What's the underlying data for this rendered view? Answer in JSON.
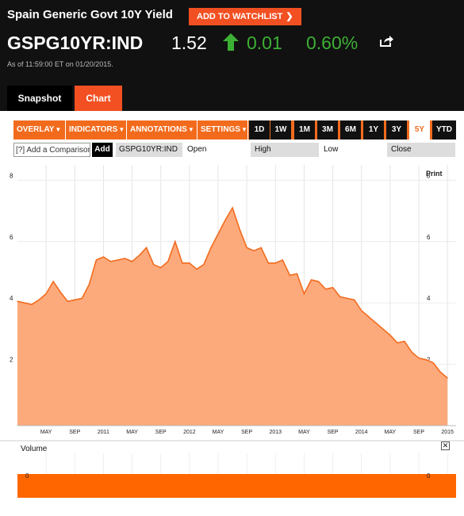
{
  "header": {
    "title": "Spain Generic Govt 10Y Yield",
    "watchlist_label": "ADD TO WATCHLIST",
    "ticker": "GSPG10YR:IND",
    "price": "1.52",
    "change": "0.01",
    "change_pct": "0.60%",
    "as_of": "As of 11:59:00 ET on 01/20/2015.",
    "up_color": "#3cb034",
    "accent": "#f25022"
  },
  "tabs": [
    {
      "label": "Snapshot",
      "active": false
    },
    {
      "label": "Chart",
      "active": true
    }
  ],
  "toolbar": {
    "menus": [
      "OVERLAY",
      "INDICATORS",
      "ANNOTATIONS",
      "SETTINGS"
    ],
    "ranges": [
      "1D",
      "1W",
      "1M",
      "3M",
      "6M",
      "1Y",
      "3Y",
      "5Y",
      "YTD"
    ],
    "active_range": "5Y"
  },
  "compare": {
    "placeholder": "[?] Add a Comparison",
    "add_label": "Add",
    "symbol": "GSPG10YR:IND",
    "fields": [
      "Open",
      "High",
      "Low",
      "Close"
    ]
  },
  "print_label": "Print",
  "volume": {
    "label": "Volume",
    "close_icon": "close-icon",
    "axis_value": "0"
  },
  "chart_data": {
    "type": "area",
    "xlabel": "",
    "ylabel": "",
    "ylim": [
      0,
      8.5
    ],
    "yticks": [
      2,
      4,
      6,
      8
    ],
    "x_tick_labels": [
      "MAY",
      "SEP",
      "2011",
      "MAY",
      "SEP",
      "2012",
      "MAY",
      "SEP",
      "2013",
      "MAY",
      "SEP",
      "2014",
      "MAY",
      "SEP",
      "2015"
    ],
    "grid": true,
    "color": "#f26b1d",
    "fill": "#fcaa7c",
    "x": [
      "2010-01",
      "2010-02",
      "2010-03",
      "2010-04",
      "2010-05",
      "2010-06",
      "2010-07",
      "2010-08",
      "2010-09",
      "2010-10",
      "2010-11",
      "2010-12",
      "2011-01",
      "2011-02",
      "2011-03",
      "2011-04",
      "2011-05",
      "2011-06",
      "2011-07",
      "2011-08",
      "2011-09",
      "2011-10",
      "2011-11",
      "2011-12",
      "2012-01",
      "2012-02",
      "2012-03",
      "2012-04",
      "2012-05",
      "2012-06",
      "2012-07",
      "2012-08",
      "2012-09",
      "2012-10",
      "2012-11",
      "2012-12",
      "2013-01",
      "2013-02",
      "2013-03",
      "2013-04",
      "2013-05",
      "2013-06",
      "2013-07",
      "2013-08",
      "2013-09",
      "2013-10",
      "2013-11",
      "2013-12",
      "2014-01",
      "2014-02",
      "2014-03",
      "2014-04",
      "2014-05",
      "2014-06",
      "2014-07",
      "2014-08",
      "2014-09",
      "2014-10",
      "2014-11",
      "2014-12",
      "2015-01"
    ],
    "values": [
      4.05,
      4.0,
      3.95,
      4.1,
      4.3,
      4.7,
      4.35,
      4.05,
      4.1,
      4.15,
      4.6,
      5.4,
      5.5,
      5.35,
      5.4,
      5.45,
      5.35,
      5.55,
      5.8,
      5.25,
      5.15,
      5.35,
      6.0,
      5.3,
      5.3,
      5.1,
      5.25,
      5.8,
      6.25,
      6.7,
      7.1,
      6.4,
      5.8,
      5.7,
      5.8,
      5.3,
      5.3,
      5.4,
      4.9,
      4.95,
      4.3,
      4.75,
      4.7,
      4.45,
      4.5,
      4.2,
      4.15,
      4.1,
      3.75,
      3.55,
      3.35,
      3.15,
      2.95,
      2.7,
      2.75,
      2.4,
      2.2,
      2.15,
      2.05,
      1.75,
      1.55
    ],
    "volume": {
      "ylim": [
        0,
        1
      ],
      "yticks": [
        0
      ]
    }
  }
}
